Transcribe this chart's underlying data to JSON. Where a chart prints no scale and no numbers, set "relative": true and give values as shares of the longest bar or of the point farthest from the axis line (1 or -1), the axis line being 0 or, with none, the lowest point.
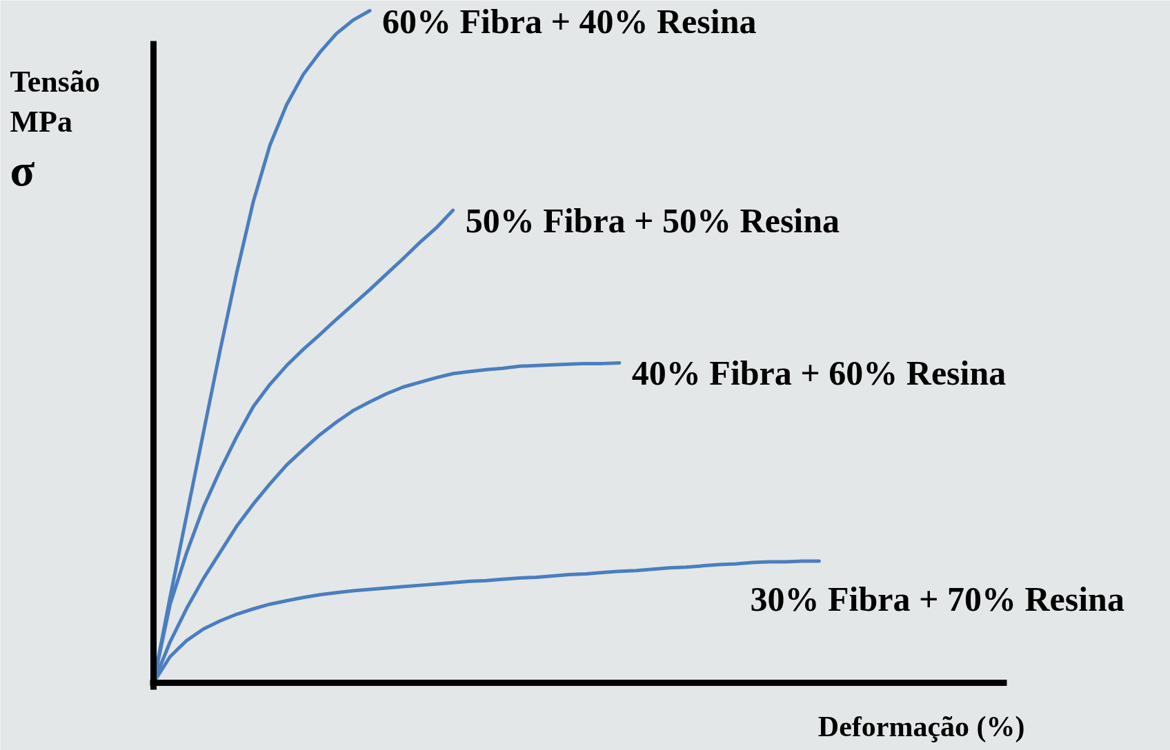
{
  "chart_data": {
    "type": "line",
    "relative": true,
    "ylabel": "Tensão\nMPa\nσ",
    "xlabel": "Deformação (%)",
    "marker": "none",
    "line_style": "solid",
    "categories": [
      null,
      null,
      null,
      null,
      null,
      null,
      null,
      null,
      null,
      null,
      null,
      null,
      null,
      null,
      null,
      null,
      null,
      null,
      null,
      null,
      null,
      null,
      null,
      null,
      null,
      null,
      null,
      null,
      null,
      null,
      null,
      null,
      null,
      null,
      null,
      null,
      null,
      null,
      null,
      null,
      null
    ],
    "series": [
      {
        "name": "60% Fibra + 40% Resina",
        "color": "#4a7ebf",
        "values": [
          0,
          0.128,
          0.25,
          0.372,
          0.494,
          0.61,
          0.716,
          0.8,
          0.86,
          0.905,
          0.938,
          0.966,
          0.986,
          1.0,
          null,
          null,
          null,
          null,
          null,
          null,
          null,
          null,
          null,
          null,
          null,
          null,
          null,
          null,
          null,
          null,
          null,
          null,
          null,
          null,
          null,
          null,
          null,
          null,
          null,
          null,
          null
        ]
      },
      {
        "name": "50% Fibra + 50% Resina",
        "color": "#4a7ebf",
        "values": [
          0,
          0.117,
          0.194,
          0.261,
          0.316,
          0.366,
          0.411,
          0.444,
          0.472,
          0.496,
          0.518,
          0.541,
          0.563,
          0.585,
          0.608,
          0.631,
          0.655,
          0.677,
          0.703,
          null,
          null,
          null,
          null,
          null,
          null,
          null,
          null,
          null,
          null,
          null,
          null,
          null,
          null,
          null,
          null,
          null,
          null,
          null,
          null,
          null,
          null
        ]
      },
      {
        "name": "40% Fibra + 60% Resina",
        "color": "#4a7ebf",
        "values": [
          0,
          0.061,
          0.111,
          0.155,
          0.194,
          0.233,
          0.266,
          0.296,
          0.324,
          0.347,
          0.369,
          0.388,
          0.405,
          0.418,
          0.43,
          0.44,
          0.447,
          0.454,
          0.46,
          0.463,
          0.466,
          0.468,
          0.471,
          0.472,
          0.473,
          0.474,
          0.475,
          0.475,
          0.476,
          null,
          null,
          null,
          null,
          null,
          null,
          null,
          null,
          null,
          null,
          null,
          null
        ]
      },
      {
        "name": "30% Fibra + 70% Resina",
        "color": "#4a7ebf",
        "values": [
          0,
          0.039,
          0.063,
          0.08,
          0.092,
          0.102,
          0.11,
          0.117,
          0.122,
          0.127,
          0.131,
          0.134,
          0.137,
          0.139,
          0.141,
          0.143,
          0.145,
          0.147,
          0.149,
          0.151,
          0.152,
          0.154,
          0.156,
          0.157,
          0.159,
          0.161,
          0.162,
          0.164,
          0.166,
          0.167,
          0.169,
          0.171,
          0.172,
          0.174,
          0.176,
          0.177,
          0.179,
          0.18,
          0.18,
          0.181,
          0.181
        ]
      }
    ]
  }
}
